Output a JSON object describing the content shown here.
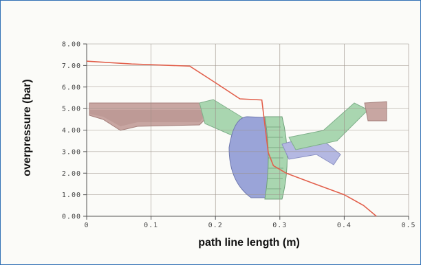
{
  "chart_data": {
    "type": "line",
    "xlabel": "path line length (m)",
    "ylabel": "overpressure (bar)",
    "xlim": [
      0,
      0.5
    ],
    "ylim": [
      0,
      8
    ],
    "x_ticks": [
      "0",
      "0.1",
      "0.2",
      "0.3",
      "0.4",
      "0.5"
    ],
    "y_ticks": [
      "0.00",
      "1.00",
      "2.00",
      "3.00",
      "4.00",
      "5.00",
      "6.00",
      "7.00",
      "8.00"
    ],
    "grid": true,
    "series": [
      {
        "color": "#e2604c",
        "points": [
          [
            0.0,
            7.2
          ],
          [
            0.07,
            7.07
          ],
          [
            0.16,
            6.97
          ],
          [
            0.2,
            6.2
          ],
          [
            0.238,
            5.45
          ],
          [
            0.272,
            5.4
          ],
          [
            0.282,
            2.95
          ],
          [
            0.29,
            2.35
          ],
          [
            0.31,
            2.0
          ],
          [
            0.35,
            1.55
          ],
          [
            0.4,
            1.0
          ],
          [
            0.43,
            0.5
          ],
          [
            0.45,
            0.0
          ]
        ]
      }
    ]
  },
  "colors": {
    "panel_border": "#2f6fb5",
    "grid": "#9a8f86",
    "pipe_left": "#c8a6a2",
    "pipe_green": "#a9d6b0",
    "vessel": "#9aa4d8",
    "curve": "#e2604c"
  }
}
